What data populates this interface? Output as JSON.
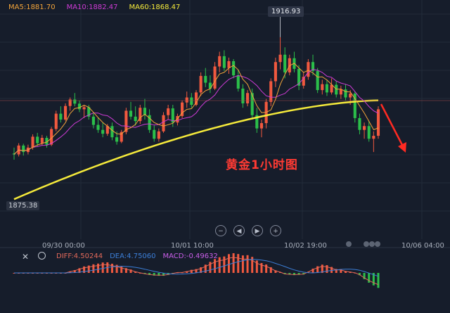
{
  "legend": {
    "ma5": "MA5:1881.70",
    "ma10": "MA10:1882.47",
    "ma60": "MA60:1868.47",
    "colors": {
      "ma5": "#f2a43a",
      "ma10": "#cf3bd6",
      "ma60": "#f5ea3b"
    }
  },
  "price_labels": {
    "peak": "1916.93",
    "low": "1875.38"
  },
  "annotation": "黄金1小时图",
  "time_labels": [
    "09/30 00:00",
    "10/01 10:00",
    "10/02 19:00",
    "10/06 04:00"
  ],
  "controls": {
    "zoom_out": "−",
    "prev": "◀",
    "next": "▶",
    "zoom_in": "+"
  },
  "macd": {
    "close_icon": "close-icon",
    "eye_icon": "eye-icon",
    "dif": "DIFF:4.50244",
    "dea": "DEA:4.75060",
    "macd": "MACD:-0.49632",
    "colors": {
      "dif": "#e2695a",
      "dea": "#3c7fd8",
      "macd": "#c95ee8"
    }
  },
  "colors": {
    "up": "#f1593f",
    "down": "#2bbf4a",
    "ma60": "#f5ea3b",
    "ma5": "#f2a43a",
    "ma10": "#cf3bd6",
    "arrow": "#ff2a22"
  },
  "chart_data": {
    "type": "candlestick",
    "title": "黄金1小时图",
    "indicators": [
      "MA5",
      "MA10",
      "MA60",
      "MACD"
    ],
    "marked_high": 1916.93,
    "marked_low": 1875.38,
    "ma60_last": 1868.47,
    "ma5_last": 1881.7,
    "ma10_last": 1882.47,
    "macd_last": {
      "dif": 4.50244,
      "dea": 4.7506,
      "macd": -0.49632
    },
    "x_ticks": [
      "09/30 00:00",
      "10/01 10:00",
      "10/02 19:00",
      "10/06 04:00"
    ],
    "ohlc": [
      [
        1877.5,
        1879.5,
        1875.4,
        1877.2
      ],
      [
        1877.2,
        1881.0,
        1876.5,
        1880.2
      ],
      [
        1880.2,
        1880.8,
        1876.8,
        1878.0
      ],
      [
        1878.0,
        1880.5,
        1877.2,
        1879.5
      ],
      [
        1879.5,
        1884.0,
        1878.8,
        1883.2
      ],
      [
        1883.2,
        1884.5,
        1880.0,
        1881.0
      ],
      [
        1881.0,
        1883.8,
        1880.2,
        1882.8
      ],
      [
        1882.8,
        1883.5,
        1879.5,
        1880.5
      ],
      [
        1880.5,
        1886.5,
        1880.0,
        1885.8
      ],
      [
        1885.8,
        1892.0,
        1885.0,
        1891.0
      ],
      [
        1891.0,
        1893.5,
        1888.0,
        1889.0
      ],
      [
        1889.0,
        1894.5,
        1888.5,
        1893.6
      ],
      [
        1893.6,
        1896.5,
        1892.0,
        1895.8
      ],
      [
        1895.8,
        1898.0,
        1893.5,
        1894.4
      ],
      [
        1894.4,
        1895.5,
        1891.5,
        1892.5
      ],
      [
        1892.5,
        1894.0,
        1889.5,
        1893.2
      ],
      [
        1893.2,
        1894.0,
        1889.0,
        1890.0
      ],
      [
        1890.0,
        1891.5,
        1886.0,
        1887.2
      ],
      [
        1887.2,
        1889.5,
        1884.5,
        1885.5
      ],
      [
        1885.5,
        1888.0,
        1883.0,
        1884.2
      ],
      [
        1884.2,
        1887.5,
        1883.5,
        1886.8
      ],
      [
        1886.8,
        1888.0,
        1882.0,
        1883.0
      ],
      [
        1883.0,
        1885.0,
        1880.5,
        1881.5
      ],
      [
        1881.5,
        1885.5,
        1881.0,
        1884.8
      ],
      [
        1884.8,
        1893.0,
        1884.0,
        1892.0
      ],
      [
        1892.0,
        1895.0,
        1889.0,
        1890.0
      ],
      [
        1890.0,
        1893.5,
        1887.0,
        1888.5
      ],
      [
        1888.5,
        1894.0,
        1887.5,
        1893.0
      ],
      [
        1893.0,
        1896.0,
        1889.0,
        1890.5
      ],
      [
        1890.5,
        1892.5,
        1884.5,
        1885.5
      ],
      [
        1885.5,
        1887.0,
        1881.5,
        1882.5
      ],
      [
        1882.5,
        1886.0,
        1881.5,
        1885.0
      ],
      [
        1885.0,
        1891.5,
        1884.5,
        1890.5
      ],
      [
        1890.5,
        1894.0,
        1889.0,
        1892.8
      ],
      [
        1892.8,
        1894.0,
        1886.5,
        1888.0
      ],
      [
        1888.0,
        1891.0,
        1887.0,
        1890.2
      ],
      [
        1890.2,
        1895.5,
        1889.5,
        1894.8
      ],
      [
        1894.8,
        1898.5,
        1893.0,
        1896.5
      ],
      [
        1896.5,
        1898.0,
        1893.0,
        1894.0
      ],
      [
        1894.0,
        1899.0,
        1893.5,
        1898.2
      ],
      [
        1898.2,
        1905.0,
        1897.0,
        1903.8
      ],
      [
        1903.8,
        1906.5,
        1900.0,
        1901.5
      ],
      [
        1901.5,
        1904.0,
        1898.0,
        1899.5
      ],
      [
        1899.5,
        1908.5,
        1899.0,
        1907.0
      ],
      [
        1907.0,
        1912.0,
        1905.0,
        1910.5
      ],
      [
        1910.5,
        1912.5,
        1905.5,
        1906.5
      ],
      [
        1906.5,
        1910.0,
        1904.5,
        1908.8
      ],
      [
        1908.8,
        1909.5,
        1903.0,
        1904.0
      ],
      [
        1904.0,
        1906.0,
        1898.5,
        1899.5
      ],
      [
        1899.5,
        1901.0,
        1893.0,
        1894.5
      ],
      [
        1894.5,
        1899.0,
        1893.5,
        1898.0
      ],
      [
        1898.0,
        1899.5,
        1889.0,
        1890.5
      ],
      [
        1890.5,
        1893.0,
        1884.5,
        1886.0
      ],
      [
        1886.0,
        1889.0,
        1883.0,
        1887.8
      ],
      [
        1887.8,
        1896.0,
        1886.0,
        1895.0
      ],
      [
        1895.0,
        1903.0,
        1893.5,
        1902.0
      ],
      [
        1902.0,
        1910.0,
        1900.0,
        1908.5
      ],
      [
        1908.5,
        1916.93,
        1906.0,
        1911.0
      ],
      [
        1911.0,
        1913.5,
        1903.0,
        1905.0
      ],
      [
        1905.0,
        1911.0,
        1904.0,
        1909.8
      ],
      [
        1909.8,
        1912.0,
        1905.0,
        1906.2
      ],
      [
        1906.2,
        1907.5,
        1899.0,
        1900.5
      ],
      [
        1900.5,
        1905.0,
        1899.5,
        1903.5
      ],
      [
        1903.5,
        1909.5,
        1902.5,
        1908.5
      ],
      [
        1908.5,
        1911.0,
        1904.0,
        1905.5
      ],
      [
        1905.5,
        1906.5,
        1898.0,
        1899.0
      ],
      [
        1899.0,
        1902.5,
        1897.5,
        1901.0
      ],
      [
        1901.0,
        1902.5,
        1897.0,
        1898.2
      ],
      [
        1898.2,
        1903.0,
        1897.5,
        1900.8
      ],
      [
        1900.8,
        1902.0,
        1896.5,
        1897.5
      ],
      [
        1897.5,
        1900.5,
        1896.0,
        1899.2
      ],
      [
        1899.2,
        1901.0,
        1895.5,
        1896.5
      ],
      [
        1896.5,
        1899.0,
        1894.0,
        1897.8
      ],
      [
        1897.8,
        1898.5,
        1888.0,
        1889.5
      ],
      [
        1889.5,
        1891.0,
        1884.0,
        1885.5
      ],
      [
        1885.5,
        1888.0,
        1882.5,
        1886.8
      ],
      [
        1886.8,
        1888.5,
        1881.5,
        1882.5
      ],
      [
        1882.5,
        1885.0,
        1878.0,
        1883.5
      ],
      [
        1883.5,
        1893.5,
        1882.5,
        1892.5
      ]
    ]
  }
}
